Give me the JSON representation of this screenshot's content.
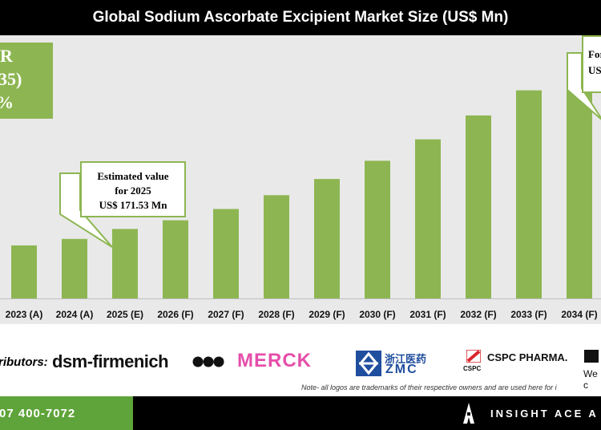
{
  "chart_data": {
    "type": "bar",
    "title": "Global Sodium Ascorbate Excipient Market Size (US$ Mn)",
    "categories": [
      "2023 (A)",
      "2024 (A)",
      "2025 (E)",
      "2026 (F)",
      "2027 (F)",
      "2028 (F)",
      "2029 (F)",
      "2030 (F)",
      "2031 (F)",
      "2032 (F)",
      "2033 (F)",
      "2034 (F)"
    ],
    "values": [
      131,
      147,
      171.53,
      193,
      221,
      255,
      295,
      340,
      393,
      452,
      514,
      562
    ],
    "ylim": [
      0,
      650
    ],
    "bar_color": "#8db652",
    "grid": false,
    "xlabel": "",
    "ylabel": ""
  },
  "cagr_box": {
    "lines": [
      "R",
      "2035)",
      "%"
    ]
  },
  "callout_2025": {
    "lines": [
      "Estimated value",
      "for 2025",
      "US$ 171.53 Mn"
    ]
  },
  "callout_forecast": {
    "lines": [
      "For",
      "US"
    ]
  },
  "distributors": {
    "label": "ributors:",
    "logos": [
      "dsm-firmenich",
      "MERCK",
      "浙江医药",
      "ZMC",
      "CSPC PHARMA.",
      "CSPC",
      "We c"
    ]
  },
  "note": "Note- all logos are trademarks of their respective owners and are used here for i",
  "footer": {
    "phone": "07 400-7072",
    "brand": "INSIGHT ACE A"
  },
  "colors": {
    "accent_green": "#8db652",
    "footer_green": "#5fa43a",
    "merck_pink": "#e64eaa",
    "zmc_blue": "#1f4e9e",
    "cspc_red": "#d9262c"
  }
}
